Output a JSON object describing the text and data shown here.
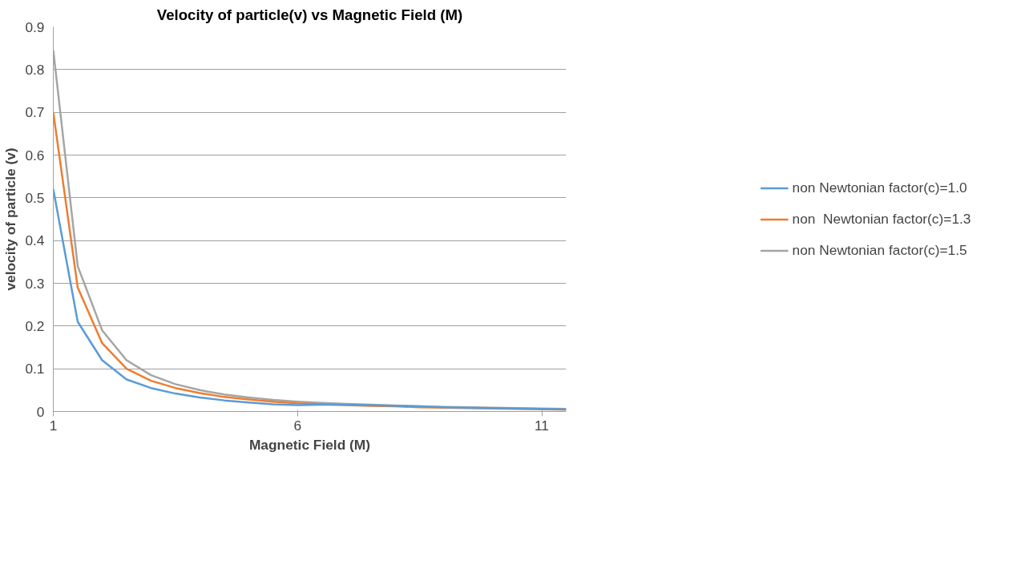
{
  "chart_data": {
    "type": "line",
    "title": "Velocity of particle(v) vs Magnetic Field (M)",
    "xlabel": "Magnetic Field (M)",
    "ylabel": "velocity of particle (v)",
    "x": [
      1,
      1.5,
      2,
      2.5,
      3,
      3.5,
      4,
      4.5,
      5,
      5.5,
      6,
      6.5,
      7,
      7.5,
      8,
      8.5,
      9,
      9.5,
      10,
      10.5,
      11,
      11.5
    ],
    "xlim": [
      1,
      11.5
    ],
    "xticks": [
      1,
      6,
      11
    ],
    "ylim": [
      0,
      0.9
    ],
    "yticks": [
      0,
      0.1,
      0.2,
      0.3,
      0.4,
      0.5,
      0.6,
      0.7,
      0.8,
      0.9
    ],
    "grid": "y",
    "legend": "right",
    "marker": "none",
    "line_style": "solid",
    "series": [
      {
        "name": "non Newtonian factor(c)=1.0",
        "color": "#5b9bd5",
        "values": [
          0.52,
          0.21,
          0.12,
          0.075,
          0.055,
          0.042,
          0.033,
          0.026,
          0.021,
          0.017,
          0.015,
          0.016,
          0.016,
          0.015,
          0.013,
          0.012,
          0.01,
          0.009,
          0.008,
          0.007,
          0.006,
          0.005
        ]
      },
      {
        "name": "non  Newtonian factor(c)=1.3",
        "color": "#ed7d31",
        "values": [
          0.7,
          0.29,
          0.16,
          0.1,
          0.072,
          0.055,
          0.043,
          0.034,
          0.028,
          0.023,
          0.019,
          0.017,
          0.015,
          0.013,
          0.012,
          0.01,
          0.009,
          0.008,
          0.007,
          0.006,
          0.005,
          0.004
        ]
      },
      {
        "name": "non Newtonian factor(c)=1.5",
        "color": "#a5a5a5",
        "values": [
          0.845,
          0.34,
          0.19,
          0.12,
          0.085,
          0.064,
          0.05,
          0.04,
          0.033,
          0.027,
          0.023,
          0.02,
          0.018,
          0.016,
          0.014,
          0.012,
          0.011,
          0.01,
          0.009,
          0.008,
          0.007,
          0.006
        ]
      }
    ]
  }
}
